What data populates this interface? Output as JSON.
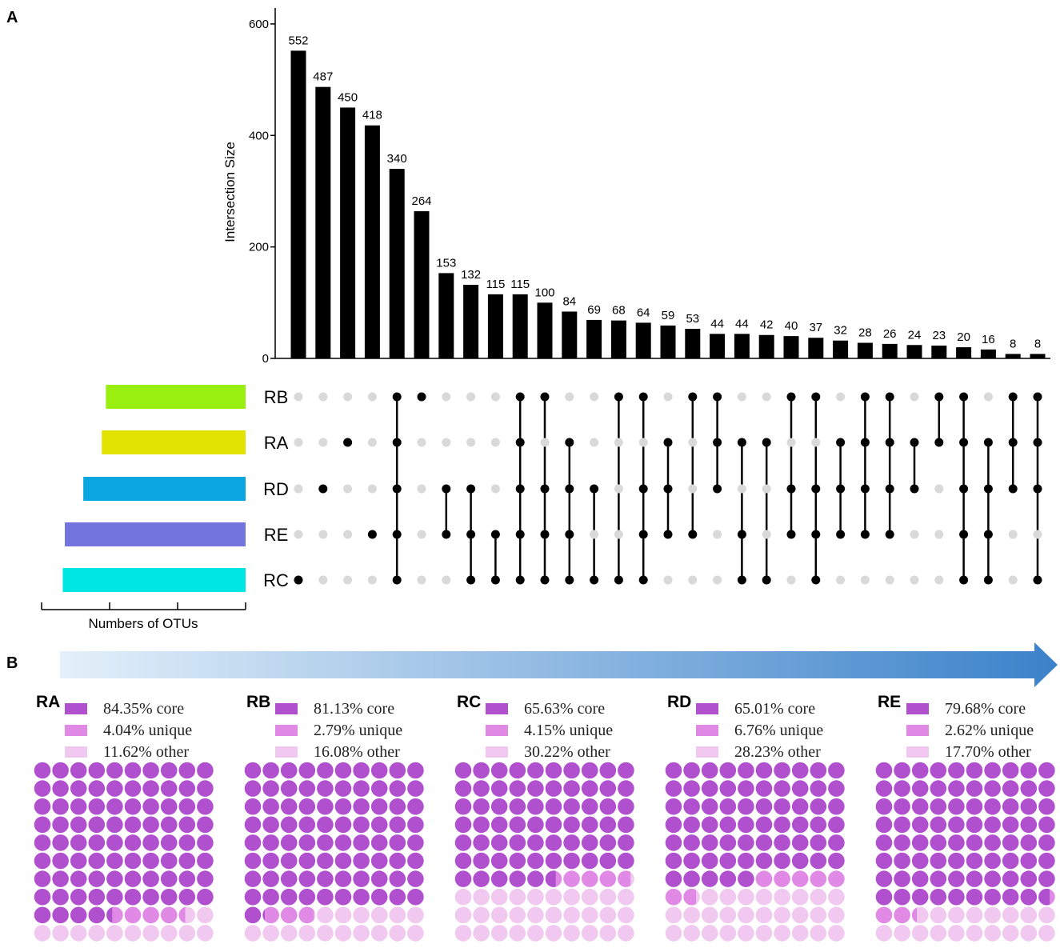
{
  "panel_a_label": "A",
  "panel_b_label": "B",
  "chart_data": [
    {
      "type": "bar",
      "chart": "upset-intersections",
      "ylabel": "Intersection Size",
      "ylim": [
        0,
        620
      ],
      "yticks": [
        0,
        200,
        400,
        600
      ],
      "values": [
        552,
        487,
        450,
        418,
        340,
        264,
        153,
        132,
        115,
        115,
        100,
        84,
        69,
        68,
        64,
        59,
        53,
        44,
        44,
        42,
        40,
        37,
        32,
        28,
        26,
        24,
        23,
        20,
        16,
        8,
        8
      ],
      "sets": [
        "RB",
        "RA",
        "RD",
        "RE",
        "RC"
      ],
      "set_colors": [
        "#99f010",
        "#e3e300",
        "#0aa6e0",
        "#7474de",
        "#00e6e3"
      ],
      "set_sizes_relative": [
        0.68,
        0.7,
        0.79,
        0.88,
        0.89
      ],
      "set_size_axis_label": "Numbers of OTUs",
      "set_size_ticks": 4,
      "matrix": [
        [
          0,
          0,
          0,
          0,
          1
        ],
        [
          0,
          0,
          1,
          0,
          0
        ],
        [
          0,
          1,
          0,
          0,
          0
        ],
        [
          0,
          0,
          0,
          1,
          0
        ],
        [
          1,
          1,
          1,
          1,
          1
        ],
        [
          1,
          0,
          0,
          0,
          0
        ],
        [
          0,
          0,
          1,
          1,
          0
        ],
        [
          0,
          0,
          1,
          1,
          1
        ],
        [
          0,
          0,
          0,
          1,
          1
        ],
        [
          1,
          1,
          1,
          1,
          1
        ],
        [
          1,
          0,
          1,
          1,
          1
        ],
        [
          0,
          1,
          1,
          1,
          1
        ],
        [
          0,
          0,
          1,
          0,
          1
        ],
        [
          1,
          0,
          0,
          0,
          1
        ],
        [
          1,
          0,
          1,
          1,
          1
        ],
        [
          0,
          1,
          1,
          1,
          0
        ],
        [
          1,
          0,
          0,
          1,
          0
        ],
        [
          1,
          1,
          1,
          0,
          0
        ],
        [
          0,
          1,
          0,
          1,
          1
        ],
        [
          0,
          1,
          0,
          0,
          1
        ],
        [
          1,
          0,
          1,
          1,
          0
        ],
        [
          1,
          0,
          1,
          1,
          1
        ],
        [
          0,
          1,
          1,
          1,
          0
        ],
        [
          1,
          1,
          1,
          1,
          0
        ],
        [
          1,
          1,
          1,
          1,
          0
        ],
        [
          0,
          1,
          1,
          0,
          0
        ],
        [
          1,
          1,
          0,
          0,
          0
        ],
        [
          1,
          1,
          1,
          1,
          1
        ],
        [
          0,
          1,
          1,
          1,
          1
        ],
        [
          1,
          1,
          1,
          0,
          0
        ],
        [
          1,
          1,
          1,
          0,
          1
        ]
      ],
      "dot_color": "#000000",
      "inactive_dot_color": "#d9d9d9"
    },
    {
      "type": "waffle",
      "chart": "core-unique-other",
      "grid": [
        10,
        10
      ],
      "colors": {
        "core": "#b150cf",
        "unique": "#e08ae6",
        "other": "#f0c8f0"
      },
      "arrow_colors": [
        "#e4f0fa",
        "#3b82ca"
      ],
      "groups": [
        {
          "name": "RA",
          "core": 84.35,
          "unique": 4.04,
          "other": 11.62,
          "legend": [
            "84.35% core",
            "4.04% unique",
            "11.62% other"
          ]
        },
        {
          "name": "RB",
          "core": 81.13,
          "unique": 2.79,
          "other": 16.08,
          "legend": [
            "81.13% core",
            "2.79% unique",
            "16.08% other"
          ]
        },
        {
          "name": "RC",
          "core": 65.63,
          "unique": 4.15,
          "other": 30.22,
          "legend": [
            "65.63% core",
            "4.15% unique",
            "30.22% other"
          ]
        },
        {
          "name": "RD",
          "core": 65.01,
          "unique": 6.76,
          "other": 28.23,
          "legend": [
            "65.01% core",
            "6.76% unique",
            "28.23% other"
          ]
        },
        {
          "name": "RE",
          "core": 79.68,
          "unique": 2.62,
          "other": 17.7,
          "legend": [
            "79.68% core",
            "2.62% unique",
            "17.70% other"
          ]
        }
      ]
    }
  ]
}
